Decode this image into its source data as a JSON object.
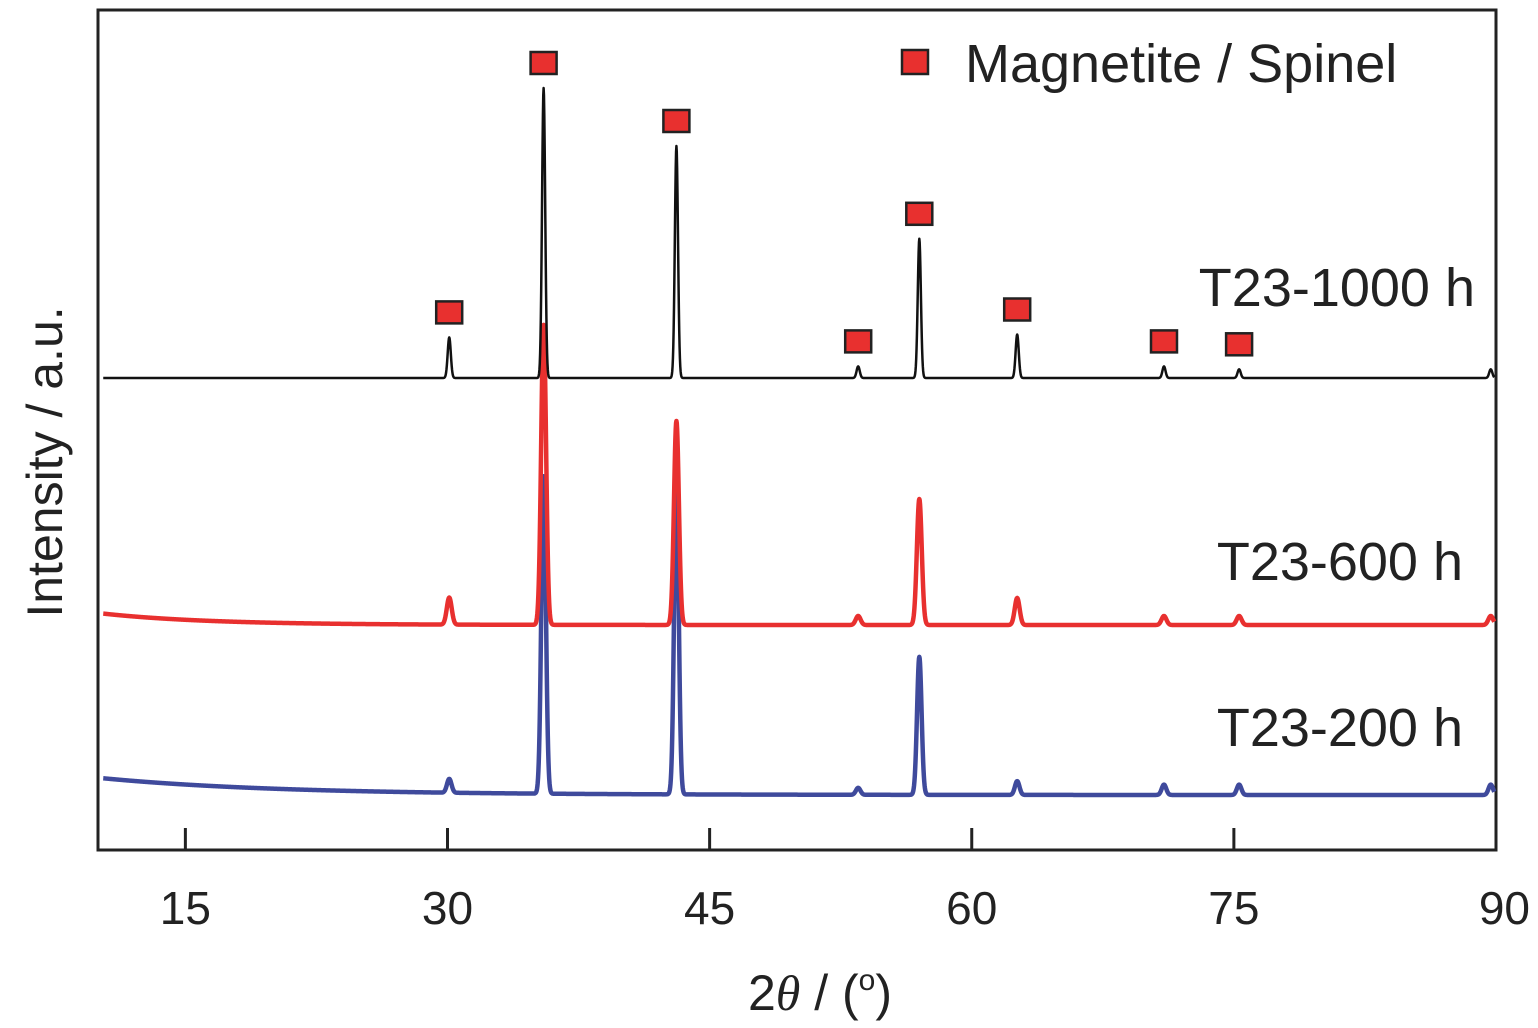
{
  "chart_data": {
    "type": "line",
    "xlabel_prefix": "2",
    "xlabel_symbol": "θ",
    "xlabel_suffix": " / (",
    "xlabel_degree": "o",
    "xlabel_close": ")",
    "ylabel": "Intensity / a.u.",
    "xlim": [
      10,
      90
    ],
    "x_ticks": [
      15,
      30,
      45,
      60,
      75,
      90
    ],
    "y_tick_labels": false,
    "grid": false,
    "legend_placement": "top-right",
    "legend": {
      "label": "Magnetite / Spinel",
      "marker": "square",
      "color": "#e8302f"
    },
    "marker_peaks": [
      30.1,
      35.5,
      43.1,
      53.5,
      57.0,
      62.6,
      71.0,
      75.3
    ],
    "peak_positions": [
      30.1,
      35.5,
      43.1,
      53.5,
      57.0,
      62.6,
      71.0,
      75.3,
      89.7
    ],
    "series": [
      {
        "name": "T23-1000 h",
        "color": "#111111",
        "baseline_start": 0.0,
        "baseline": 0.0,
        "decay": 1.0,
        "peak_heights": [
          0.14,
          1.0,
          0.8,
          0.04,
          0.48,
          0.15,
          0.04,
          0.03,
          0.03
        ]
      },
      {
        "name": "T23-600 h",
        "color": "#e8302f",
        "baseline_start": 0.04,
        "baseline": 0.0,
        "decay": 6.0,
        "peak_heights": [
          0.09,
          1.0,
          0.68,
          0.03,
          0.42,
          0.09,
          0.03,
          0.03,
          0.03
        ]
      },
      {
        "name": "T23-200 h",
        "color": "#3f4a9c",
        "baseline_start": 0.05,
        "baseline": 0.0,
        "decay": 10.0,
        "peak_heights": [
          0.04,
          0.92,
          0.92,
          0.02,
          0.4,
          0.04,
          0.03,
          0.03,
          0.03
        ]
      }
    ]
  }
}
